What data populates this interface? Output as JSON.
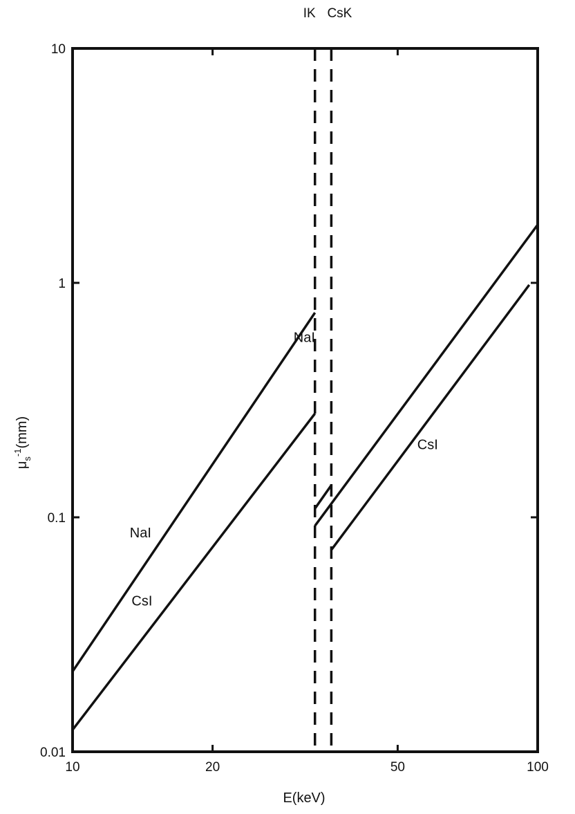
{
  "chart_data": {
    "type": "line",
    "title": "",
    "xlabel": "E(keV)",
    "ylabel": "μs⁻¹(mm)",
    "ylabel_main": "μ",
    "ylabel_sub": "s",
    "ylabel_sup": "-1",
    "ylabel_unit": "(mm)",
    "x_scale": "log",
    "y_scale": "log",
    "xlim": [
      10,
      100
    ],
    "ylim": [
      0.01,
      10
    ],
    "grid": false,
    "x_ticks": [
      {
        "value": 10,
        "label": "10"
      },
      {
        "value": 20,
        "label": "20"
      },
      {
        "value": 50,
        "label": "50"
      },
      {
        "value": 100,
        "label": "100"
      }
    ],
    "y_ticks": [
      {
        "value": 0.01,
        "label": "0.01"
      },
      {
        "value": 0.1,
        "label": "0.1"
      },
      {
        "value": 1,
        "label": "1"
      },
      {
        "value": 10,
        "label": "10"
      }
    ],
    "edges": [
      {
        "name": "IK",
        "x": 33.2
      },
      {
        "name": "CsK",
        "x": 36.0
      }
    ],
    "series": [
      {
        "name": "NaI",
        "segments": [
          [
            [
              10,
              0.022
            ],
            [
              33.2,
              0.746
            ]
          ],
          [
            [
              33.2,
              0.092
            ],
            [
              100,
              1.77
            ]
          ]
        ]
      },
      {
        "name": "CsI",
        "segments": [
          [
            [
              10,
              0.0124
            ],
            [
              33.2,
              0.277
            ]
          ],
          [
            [
              33.2,
              0.109
            ],
            [
              36.0,
              0.137
            ]
          ],
          [
            [
              36.0,
              0.0726
            ],
            [
              95.9,
              0.98
            ]
          ]
        ]
      }
    ],
    "annotations": [
      {
        "text": "NaI",
        "x": 14.0,
        "y": 0.082
      },
      {
        "text": "CsI",
        "x": 14.1,
        "y": 0.042
      },
      {
        "text": "NaI",
        "x": 31.5,
        "y": 0.56
      },
      {
        "text": "CsI",
        "x": 58.0,
        "y": 0.195
      }
    ]
  }
}
